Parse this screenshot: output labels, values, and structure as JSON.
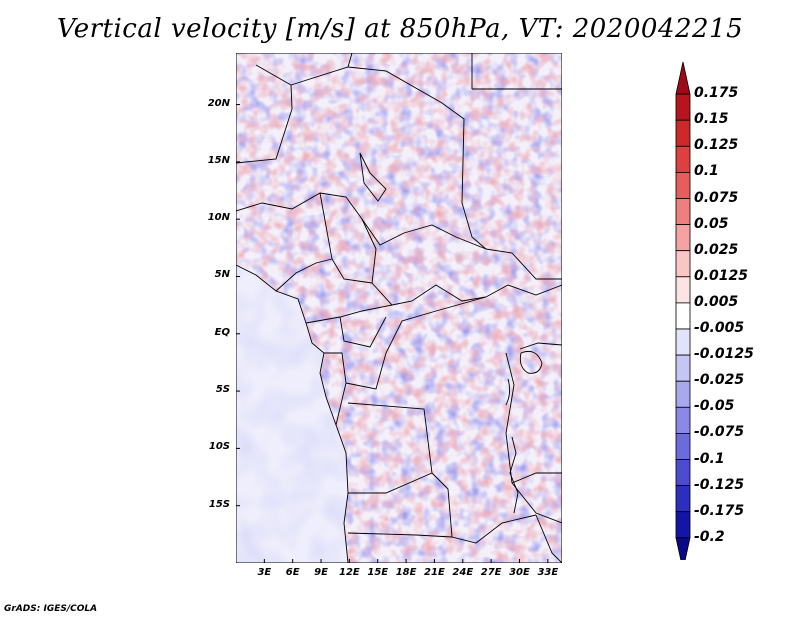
{
  "title": "Vertical velocity [m/s] at 850hPa, VT: 2020042215",
  "footer": "GrADS: IGES/COLA",
  "map": {
    "latitude_labels": [
      "20N",
      "15N",
      "10N",
      "5N",
      "EQ",
      "5S",
      "10S",
      "15S"
    ],
    "latitude_values": [
      20,
      15,
      10,
      5,
      0,
      -5,
      -10,
      -15
    ],
    "longitude_labels": [
      "3E",
      "6E",
      "9E",
      "12E",
      "15E",
      "18E",
      "21E",
      "24E",
      "27E",
      "30E",
      "33E"
    ],
    "longitude_values": [
      3,
      6,
      9,
      12,
      15,
      18,
      21,
      24,
      27,
      30,
      33
    ],
    "lat_range": [
      -20,
      24.5
    ],
    "lon_range": [
      0,
      34.5
    ]
  },
  "colorbar": {
    "levels": [
      "0.175",
      "0.15",
      "0.125",
      "0.1",
      "0.075",
      "0.05",
      "0.025",
      "0.0125",
      "0.005",
      "-0.005",
      "-0.0125",
      "-0.025",
      "-0.05",
      "-0.075",
      "-0.1",
      "-0.125",
      "-0.175",
      "-0.2"
    ],
    "colors": [
      "#9e0a18",
      "#b8141e",
      "#cc2a2a",
      "#dc4040",
      "#e65d5d",
      "#ee7f7f",
      "#f4a2a2",
      "#f9c6c6",
      "#fde4e4",
      "#ffffff",
      "#e2e2fb",
      "#c6c6f6",
      "#a8a8ef",
      "#8a8ae6",
      "#6b6bdc",
      "#4c4ccf",
      "#2d2dbe",
      "#1414a6",
      "#0a0a86"
    ]
  },
  "colors": {
    "upward_red": "#e05555",
    "downward_blue": "#5a5ad8",
    "border": "#000000"
  }
}
